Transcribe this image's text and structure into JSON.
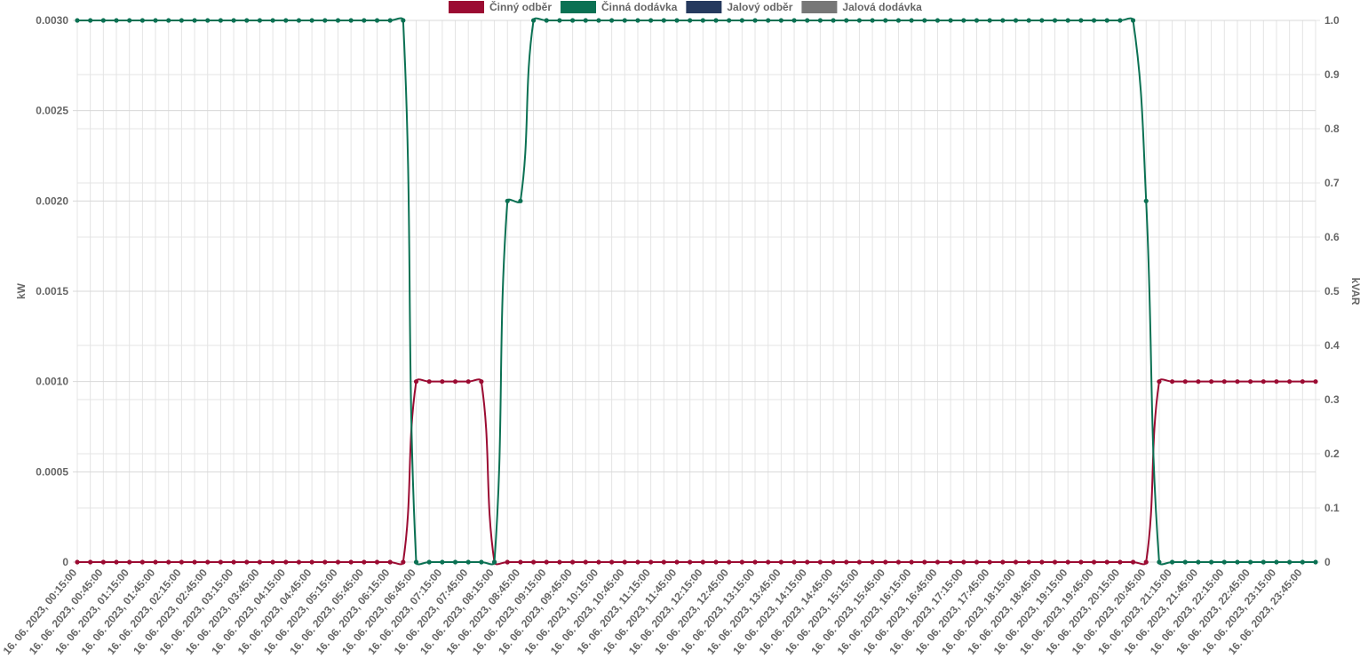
{
  "chart_data": {
    "type": "line",
    "categories": [
      "16. 06. 2023, 00:15:00",
      null,
      "16. 06. 2023, 00:45:00",
      null,
      "16. 06. 2023, 01:15:00",
      null,
      "16. 06. 2023, 01:45:00",
      null,
      "16. 06. 2023, 02:15:00",
      null,
      "16. 06. 2023, 02:45:00",
      null,
      "16. 06. 2023, 03:15:00",
      null,
      "16. 06. 2023, 03:45:00",
      null,
      "16. 06. 2023, 04:15:00",
      null,
      "16. 06. 2023, 04:45:00",
      null,
      "16. 06. 2023, 05:15:00",
      null,
      "16. 06. 2023, 05:45:00",
      null,
      "16. 06. 2023, 06:15:00",
      null,
      "16. 06. 2023, 06:45:00",
      null,
      "16. 06. 2023, 07:15:00",
      null,
      "16. 06. 2023, 07:45:00",
      null,
      "16. 06. 2023, 08:15:00",
      null,
      "16. 06. 2023, 08:45:00",
      null,
      "16. 06. 2023, 09:15:00",
      null,
      "16. 06. 2023, 09:45:00",
      null,
      "16. 06. 2023, 10:15:00",
      null,
      "16. 06. 2023, 10:45:00",
      null,
      "16. 06. 2023, 11:15:00",
      null,
      "16. 06. 2023, 11:45:00",
      null,
      "16. 06. 2023, 12:15:00",
      null,
      "16. 06. 2023, 12:45:00",
      null,
      "16. 06. 2023, 13:15:00",
      null,
      "16. 06. 2023, 13:45:00",
      null,
      "16. 06. 2023, 14:15:00",
      null,
      "16. 06. 2023, 14:45:00",
      null,
      "16. 06. 2023, 15:15:00",
      null,
      "16. 06. 2023, 15:45:00",
      null,
      "16. 06. 2023, 16:15:00",
      null,
      "16. 06. 2023, 16:45:00",
      null,
      "16. 06. 2023, 17:15:00",
      null,
      "16. 06. 2023, 17:45:00",
      null,
      "16. 06. 2023, 18:15:00",
      null,
      "16. 06. 2023, 18:45:00",
      null,
      "16. 06. 2023, 19:15:00",
      null,
      "16. 06. 2023, 19:45:00",
      null,
      "16. 06. 2023, 20:15:00",
      null,
      "16. 06. 2023, 20:45:00",
      null,
      "16. 06. 2023, 21:15:00",
      null,
      "16. 06. 2023, 21:45:00",
      null,
      "16. 06. 2023, 22:15:00",
      null,
      "16. 06. 2023, 22:45:00",
      null,
      "16. 06. 2023, 23:15:00",
      null,
      "16. 06. 2023, 23:45:00",
      null
    ],
    "series": [
      {
        "name": "Činný odběr",
        "color": "#9b0b32",
        "values": [
          0,
          0,
          0,
          0,
          0,
          0,
          0,
          0,
          0,
          0,
          0,
          0,
          0,
          0,
          0,
          0,
          0,
          0,
          0,
          0,
          0,
          0,
          0,
          0,
          0,
          0,
          0.001,
          0.001,
          0.001,
          0.001,
          0.001,
          0.001,
          0,
          0,
          0,
          0,
          0,
          0,
          0,
          0,
          0,
          0,
          0,
          0,
          0,
          0,
          0,
          0,
          0,
          0,
          0,
          0,
          0,
          0,
          0,
          0,
          0,
          0,
          0,
          0,
          0,
          0,
          0,
          0,
          0,
          0,
          0,
          0,
          0,
          0,
          0,
          0,
          0,
          0,
          0,
          0,
          0,
          0,
          0,
          0,
          0,
          0,
          0,
          0.001,
          0.001,
          0.001,
          0.001,
          0.001,
          0.001,
          0.001,
          0.001,
          0.001,
          0.001,
          0.001,
          0.001,
          0.001
        ]
      },
      {
        "name": "Činná dodávka",
        "color": "#0b7153",
        "values": [
          0.003,
          0.003,
          0.003,
          0.003,
          0.003,
          0.003,
          0.003,
          0.003,
          0.003,
          0.003,
          0.003,
          0.003,
          0.003,
          0.003,
          0.003,
          0.003,
          0.003,
          0.003,
          0.003,
          0.003,
          0.003,
          0.003,
          0.003,
          0.003,
          0.003,
          0.003,
          0,
          0,
          0,
          0,
          0,
          0,
          0,
          0.002,
          0.002,
          0.003,
          0.003,
          0.003,
          0.003,
          0.003,
          0.003,
          0.003,
          0.003,
          0.003,
          0.003,
          0.003,
          0.003,
          0.003,
          0.003,
          0.003,
          0.003,
          0.003,
          0.003,
          0.003,
          0.003,
          0.003,
          0.003,
          0.003,
          0.003,
          0.003,
          0.003,
          0.003,
          0.003,
          0.003,
          0.003,
          0.003,
          0.003,
          0.003,
          0.003,
          0.003,
          0.003,
          0.003,
          0.003,
          0.003,
          0.003,
          0.003,
          0.003,
          0.003,
          0.003,
          0.003,
          0.003,
          0.003,
          0.002,
          0,
          0,
          0,
          0,
          0,
          0,
          0,
          0,
          0,
          0,
          0,
          0,
          0
        ]
      },
      {
        "name": "Jalový odběr",
        "color": "#263a5e"
      },
      {
        "name": "Jalová dodávka",
        "color": "#777777"
      }
    ],
    "ylabel": "kW",
    "y2label": "kVAR",
    "ylim": [
      0,
      0.003
    ],
    "yticks": [
      0,
      0.0005,
      {
        "value": 0.001,
        "label": "0.0010"
      },
      0.0015,
      {
        "value": 0.002,
        "label": "0.0020"
      },
      0.0025,
      {
        "value": 0.003,
        "label": "0.0030"
      }
    ],
    "y2lim": [
      0,
      1
    ],
    "y2ticks": [
      0,
      0.1,
      0.2,
      0.3,
      0.4,
      0.5,
      0.6,
      0.7,
      0.8,
      0.9,
      {
        "value": 1,
        "label": "1.0"
      }
    ],
    "grid": true,
    "legend": "top"
  }
}
